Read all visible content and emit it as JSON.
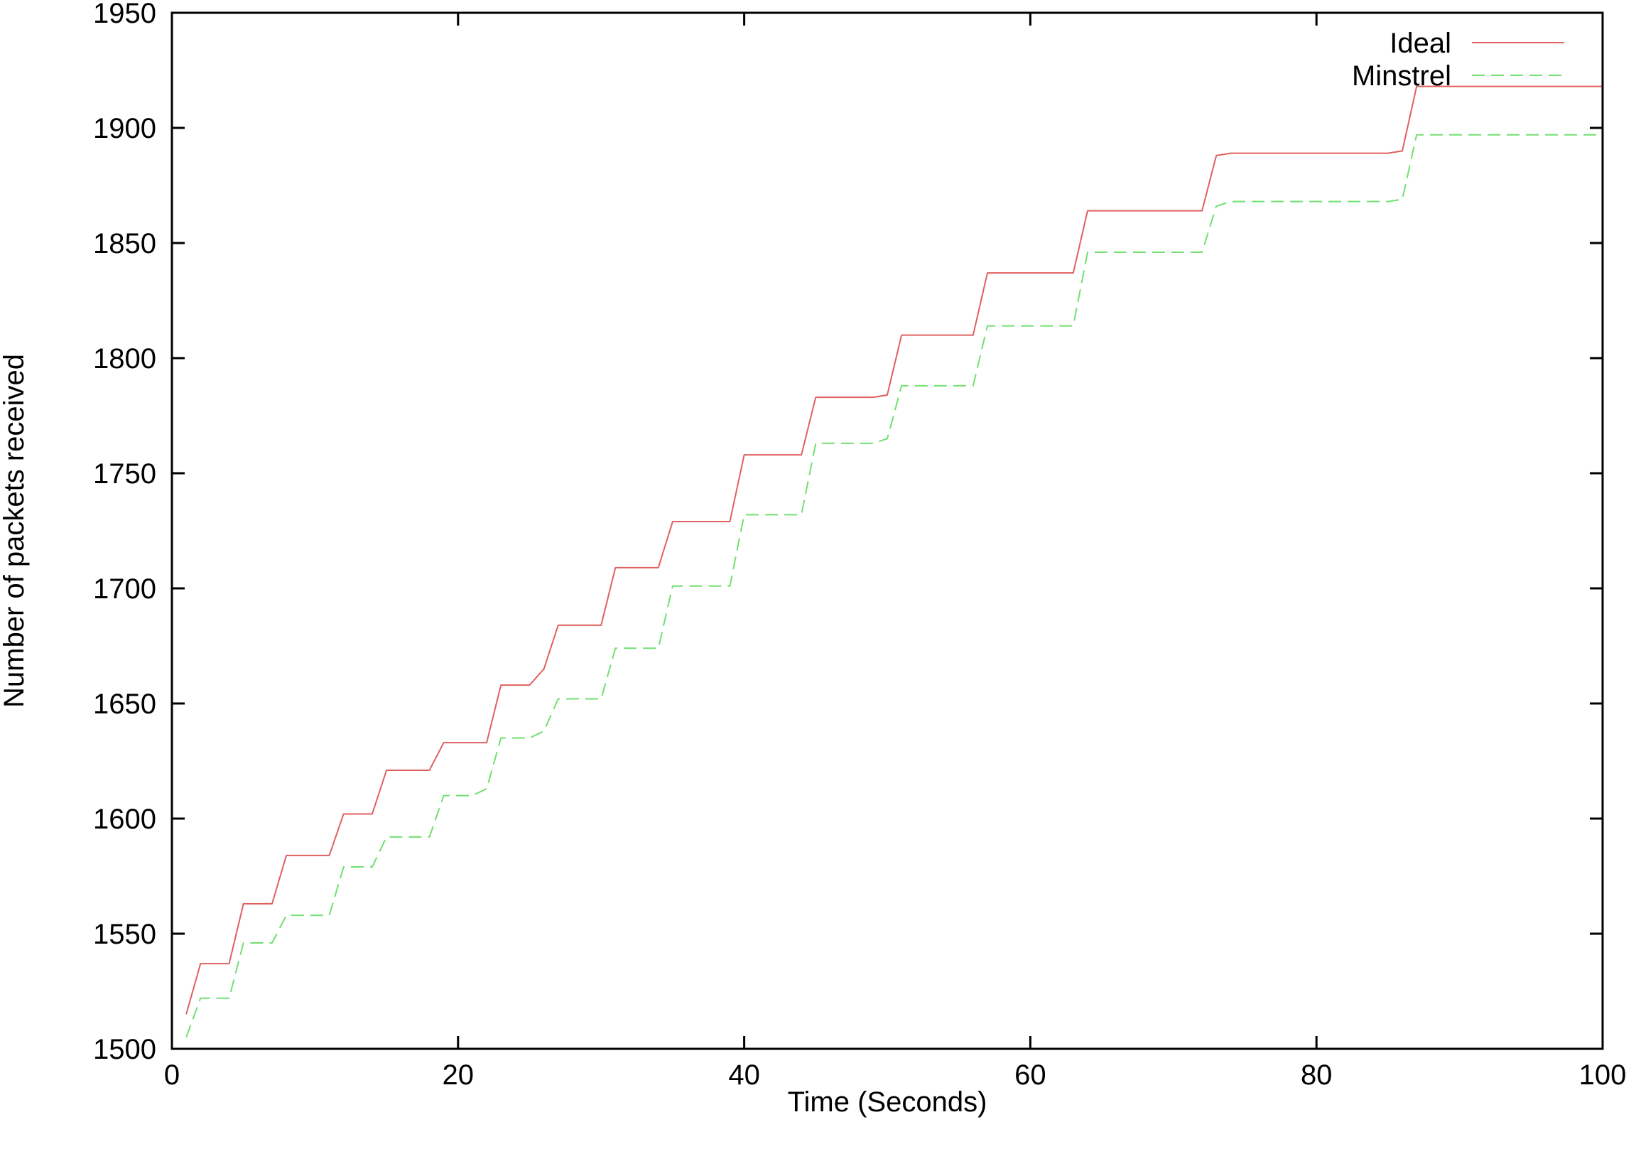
{
  "chart_data": {
    "type": "line",
    "title": "",
    "xlabel": "Time (Seconds)",
    "ylabel": "Number of packets received",
    "xlim": [
      0,
      100
    ],
    "ylim": [
      1500,
      1950
    ],
    "x_ticks": [
      0,
      20,
      40,
      60,
      80,
      100
    ],
    "y_ticks": [
      1500,
      1550,
      1600,
      1650,
      1700,
      1750,
      1800,
      1850,
      1900,
      1950
    ],
    "grid": false,
    "legend_position": "top-right",
    "series": [
      {
        "name": "Ideal",
        "color": "#e06060",
        "dash": "solid",
        "x": [
          1,
          2,
          4,
          5,
          7,
          8,
          11,
          12,
          14,
          15,
          18,
          19,
          22,
          23,
          25,
          26,
          27,
          30,
          31,
          34,
          35,
          39,
          40,
          44,
          45,
          49,
          50,
          51,
          56,
          57,
          63,
          64,
          72,
          73,
          74,
          85,
          86,
          87,
          100
        ],
        "y": [
          1515,
          1537,
          1537,
          1563,
          1563,
          1584,
          1584,
          1602,
          1602,
          1621,
          1621,
          1633,
          1633,
          1658,
          1658,
          1665,
          1684,
          1684,
          1709,
          1709,
          1729,
          1729,
          1758,
          1758,
          1783,
          1783,
          1784,
          1810,
          1810,
          1837,
          1837,
          1864,
          1864,
          1888,
          1889,
          1889,
          1890,
          1918,
          1918
        ]
      },
      {
        "name": "Minstrel",
        "color": "#70e070",
        "dash": "dashed",
        "x": [
          1,
          2,
          4,
          5,
          7,
          8,
          11,
          12,
          14,
          15,
          18,
          19,
          21,
          22,
          23,
          25,
          26,
          27,
          30,
          31,
          34,
          35,
          39,
          40,
          44,
          45,
          49,
          50,
          51,
          56,
          57,
          63,
          64,
          72,
          73,
          74,
          85,
          86,
          87,
          100
        ],
        "y": [
          1505,
          1522,
          1522,
          1546,
          1546,
          1558,
          1558,
          1579,
          1579,
          1592,
          1592,
          1610,
          1610,
          1613,
          1635,
          1635,
          1638,
          1652,
          1652,
          1674,
          1674,
          1701,
          1701,
          1732,
          1732,
          1763,
          1763,
          1765,
          1788,
          1788,
          1814,
          1814,
          1846,
          1846,
          1866,
          1868,
          1868,
          1869,
          1897,
          1897
        ]
      }
    ]
  }
}
